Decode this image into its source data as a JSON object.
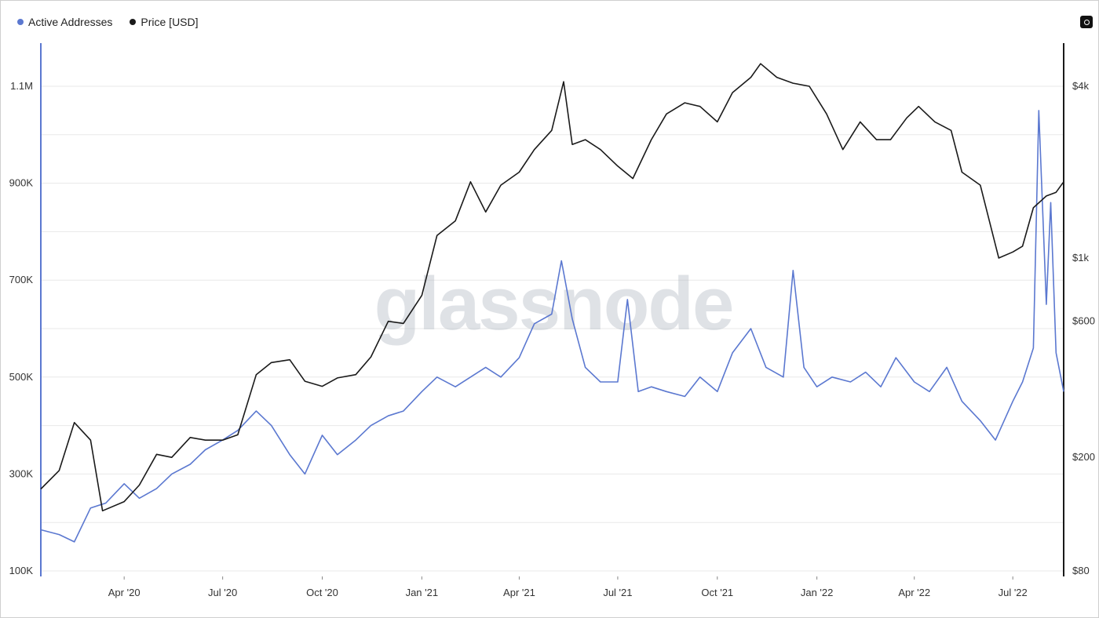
{
  "legend": [
    {
      "label": "Active Addresses",
      "color": "#5b78d0"
    },
    {
      "label": "Price [USD]",
      "color": "#1a1a1a"
    }
  ],
  "watermark": "glassnode",
  "toolbar": {
    "icon": "camera-icon"
  },
  "chart_data": {
    "type": "line",
    "x_ticks": [
      "Apr '20",
      "Jul '20",
      "Oct '20",
      "Jan '21",
      "Apr '21",
      "Jul '21",
      "Oct '21",
      "Jan '22",
      "Apr '22",
      "Jul '22"
    ],
    "x_tick_dates": [
      "2020-04-01",
      "2020-07-01",
      "2020-10-01",
      "2021-01-01",
      "2021-04-01",
      "2021-07-01",
      "2021-10-01",
      "2022-01-01",
      "2022-04-01",
      "2022-07-01"
    ],
    "x_range": [
      "2020-01-15",
      "2022-08-17"
    ],
    "y_left": {
      "ticks": [
        "100K",
        "300K",
        "500K",
        "700K",
        "900K",
        "1.1M"
      ],
      "tick_values": [
        100000,
        300000,
        500000,
        700000,
        900000,
        1100000
      ],
      "range": [
        100000,
        1100000
      ],
      "scale": "linear"
    },
    "y_right": {
      "ticks": [
        "$80",
        "$200",
        "$600",
        "$1k",
        "$4k"
      ],
      "tick_values": [
        80,
        200,
        600,
        1000,
        4000
      ],
      "scale": "log"
    },
    "grid": true,
    "legend_position": "top-left",
    "series": [
      {
        "name": "Active Addresses",
        "axis": "left",
        "color": "#5b78d0",
        "points": [
          [
            "2020-01-15",
            185000
          ],
          [
            "2020-02-01",
            175000
          ],
          [
            "2020-02-15",
            160000
          ],
          [
            "2020-03-01",
            230000
          ],
          [
            "2020-03-15",
            240000
          ],
          [
            "2020-04-01",
            280000
          ],
          [
            "2020-04-15",
            250000
          ],
          [
            "2020-05-01",
            270000
          ],
          [
            "2020-05-15",
            300000
          ],
          [
            "2020-06-01",
            320000
          ],
          [
            "2020-06-15",
            350000
          ],
          [
            "2020-07-01",
            370000
          ],
          [
            "2020-07-15",
            390000
          ],
          [
            "2020-08-01",
            430000
          ],
          [
            "2020-08-15",
            400000
          ],
          [
            "2020-09-01",
            340000
          ],
          [
            "2020-09-15",
            300000
          ],
          [
            "2020-10-01",
            380000
          ],
          [
            "2020-10-15",
            340000
          ],
          [
            "2020-11-01",
            370000
          ],
          [
            "2020-11-15",
            400000
          ],
          [
            "2020-12-01",
            420000
          ],
          [
            "2020-12-15",
            430000
          ],
          [
            "2021-01-01",
            470000
          ],
          [
            "2021-01-15",
            500000
          ],
          [
            "2021-02-01",
            480000
          ],
          [
            "2021-02-15",
            500000
          ],
          [
            "2021-03-01",
            520000
          ],
          [
            "2021-03-15",
            500000
          ],
          [
            "2021-04-01",
            540000
          ],
          [
            "2021-04-15",
            610000
          ],
          [
            "2021-05-01",
            630000
          ],
          [
            "2021-05-10",
            740000
          ],
          [
            "2021-05-20",
            620000
          ],
          [
            "2021-06-01",
            520000
          ],
          [
            "2021-06-15",
            490000
          ],
          [
            "2021-07-01",
            490000
          ],
          [
            "2021-07-10",
            660000
          ],
          [
            "2021-07-20",
            470000
          ],
          [
            "2021-08-01",
            480000
          ],
          [
            "2021-08-15",
            470000
          ],
          [
            "2021-09-01",
            460000
          ],
          [
            "2021-09-15",
            500000
          ],
          [
            "2021-10-01",
            470000
          ],
          [
            "2021-10-15",
            550000
          ],
          [
            "2021-11-01",
            600000
          ],
          [
            "2021-11-15",
            520000
          ],
          [
            "2021-12-01",
            500000
          ],
          [
            "2021-12-10",
            720000
          ],
          [
            "2021-12-20",
            520000
          ],
          [
            "2022-01-01",
            480000
          ],
          [
            "2022-01-15",
            500000
          ],
          [
            "2022-02-01",
            490000
          ],
          [
            "2022-02-15",
            510000
          ],
          [
            "2022-03-01",
            480000
          ],
          [
            "2022-03-15",
            540000
          ],
          [
            "2022-04-01",
            490000
          ],
          [
            "2022-04-15",
            470000
          ],
          [
            "2022-05-01",
            520000
          ],
          [
            "2022-05-15",
            450000
          ],
          [
            "2022-06-01",
            410000
          ],
          [
            "2022-06-15",
            370000
          ],
          [
            "2022-07-01",
            450000
          ],
          [
            "2022-07-10",
            490000
          ],
          [
            "2022-07-20",
            560000
          ],
          [
            "2022-07-25",
            1050000
          ],
          [
            "2022-08-01",
            650000
          ],
          [
            "2022-08-05",
            860000
          ],
          [
            "2022-08-10",
            550000
          ],
          [
            "2022-08-17",
            470000
          ]
        ]
      },
      {
        "name": "Price [USD]",
        "axis": "right",
        "color": "#1a1a1a",
        "points": [
          [
            "2020-01-15",
            155
          ],
          [
            "2020-02-01",
            180
          ],
          [
            "2020-02-15",
            265
          ],
          [
            "2020-03-01",
            230
          ],
          [
            "2020-03-12",
            130
          ],
          [
            "2020-04-01",
            140
          ],
          [
            "2020-04-15",
            160
          ],
          [
            "2020-05-01",
            205
          ],
          [
            "2020-05-15",
            200
          ],
          [
            "2020-06-01",
            235
          ],
          [
            "2020-06-15",
            230
          ],
          [
            "2020-07-01",
            230
          ],
          [
            "2020-07-15",
            240
          ],
          [
            "2020-08-01",
            390
          ],
          [
            "2020-08-15",
            430
          ],
          [
            "2020-09-01",
            440
          ],
          [
            "2020-09-15",
            370
          ],
          [
            "2020-10-01",
            355
          ],
          [
            "2020-10-15",
            380
          ],
          [
            "2020-11-01",
            390
          ],
          [
            "2020-11-15",
            450
          ],
          [
            "2020-12-01",
            600
          ],
          [
            "2020-12-15",
            590
          ],
          [
            "2021-01-01",
            740
          ],
          [
            "2021-01-15",
            1200
          ],
          [
            "2021-02-01",
            1350
          ],
          [
            "2021-02-15",
            1850
          ],
          [
            "2021-03-01",
            1450
          ],
          [
            "2021-03-15",
            1800
          ],
          [
            "2021-04-01",
            2000
          ],
          [
            "2021-04-15",
            2400
          ],
          [
            "2021-05-01",
            2800
          ],
          [
            "2021-05-12",
            4150
          ],
          [
            "2021-05-20",
            2500
          ],
          [
            "2021-06-01",
            2600
          ],
          [
            "2021-06-15",
            2400
          ],
          [
            "2021-07-01",
            2100
          ],
          [
            "2021-07-15",
            1900
          ],
          [
            "2021-08-01",
            2600
          ],
          [
            "2021-08-15",
            3200
          ],
          [
            "2021-09-01",
            3500
          ],
          [
            "2021-09-15",
            3400
          ],
          [
            "2021-10-01",
            3000
          ],
          [
            "2021-10-15",
            3800
          ],
          [
            "2021-11-01",
            4300
          ],
          [
            "2021-11-10",
            4800
          ],
          [
            "2021-11-25",
            4300
          ],
          [
            "2021-12-10",
            4100
          ],
          [
            "2021-12-25",
            4000
          ],
          [
            "2022-01-10",
            3200
          ],
          [
            "2022-01-25",
            2400
          ],
          [
            "2022-02-10",
            3000
          ],
          [
            "2022-02-25",
            2600
          ],
          [
            "2022-03-10",
            2600
          ],
          [
            "2022-03-25",
            3100
          ],
          [
            "2022-04-05",
            3400
          ],
          [
            "2022-04-20",
            3000
          ],
          [
            "2022-05-05",
            2800
          ],
          [
            "2022-05-15",
            2000
          ],
          [
            "2022-06-01",
            1800
          ],
          [
            "2022-06-18",
            1000
          ],
          [
            "2022-07-01",
            1050
          ],
          [
            "2022-07-10",
            1100
          ],
          [
            "2022-07-20",
            1500
          ],
          [
            "2022-08-01",
            1650
          ],
          [
            "2022-08-10",
            1700
          ],
          [
            "2022-08-17",
            1850
          ]
        ]
      }
    ]
  }
}
